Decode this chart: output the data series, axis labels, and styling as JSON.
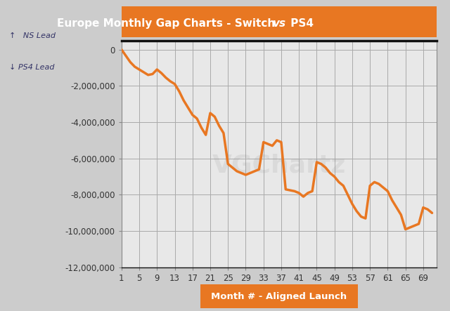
{
  "title_main": "Europe Monthly Gap Charts - Switch ",
  "title_vs": "vs",
  "title_ps4": " PS4",
  "xlabel": "Month # - Aligned Launch",
  "ylabel_up": "↑   NS Lead",
  "ylabel_down": "↓ PS4 Lead",
  "title_bg": "#E87722",
  "title_color": "#FFFFFF",
  "xlabel_bg": "#E87722",
  "xlabel_color": "#FFFFFF",
  "line_color": "#E87722",
  "line_width": 2.5,
  "outer_bg": "#CCCCCC",
  "plot_bg": "#E8E8E8",
  "grid_color": "#AAAAAA",
  "ylim": [
    -12000000,
    500000
  ],
  "yticks": [
    0,
    -2000000,
    -4000000,
    -6000000,
    -8000000,
    -10000000,
    -12000000
  ],
  "xticks": [
    1,
    5,
    9,
    13,
    17,
    21,
    25,
    29,
    33,
    37,
    41,
    45,
    49,
    53,
    57,
    61,
    65,
    69
  ],
  "xlim": [
    1,
    72
  ],
  "x": [
    1,
    2,
    3,
    4,
    5,
    6,
    7,
    8,
    9,
    10,
    11,
    12,
    13,
    14,
    15,
    16,
    17,
    18,
    19,
    20,
    21,
    22,
    23,
    24,
    25,
    26,
    27,
    28,
    29,
    30,
    31,
    32,
    33,
    34,
    35,
    36,
    37,
    38,
    39,
    40,
    41,
    42,
    43,
    44,
    45,
    46,
    47,
    48,
    49,
    50,
    51,
    52,
    53,
    54,
    55,
    56,
    57,
    58,
    59,
    60,
    61,
    62,
    63,
    64,
    65,
    66,
    67,
    68,
    69,
    70,
    71
  ],
  "y": [
    0,
    -350000,
    -700000,
    -950000,
    -1100000,
    -1250000,
    -1400000,
    -1350000,
    -1100000,
    -1300000,
    -1550000,
    -1750000,
    -1900000,
    -2300000,
    -2800000,
    -3200000,
    -3600000,
    -3800000,
    -4300000,
    -4700000,
    -3500000,
    -3700000,
    -4200000,
    -4600000,
    -6300000,
    -6500000,
    -6700000,
    -6800000,
    -6900000,
    -6800000,
    -6700000,
    -6600000,
    -5100000,
    -5200000,
    -5300000,
    -5000000,
    -5100000,
    -7700000,
    -7750000,
    -7800000,
    -7900000,
    -8100000,
    -7900000,
    -7800000,
    -6200000,
    -6300000,
    -6500000,
    -6800000,
    -7000000,
    -7300000,
    -7500000,
    -8000000,
    -8500000,
    -8900000,
    -9200000,
    -9300000,
    -7500000,
    -7300000,
    -7400000,
    -7600000,
    -7800000,
    -8300000,
    -8700000,
    -9100000,
    -9900000,
    -9800000,
    -9700000,
    -9600000,
    -8700000,
    -8800000,
    -9000000
  ],
  "label_color": "#333366",
  "tick_label_color": "#333333",
  "spine_color": "#888888"
}
